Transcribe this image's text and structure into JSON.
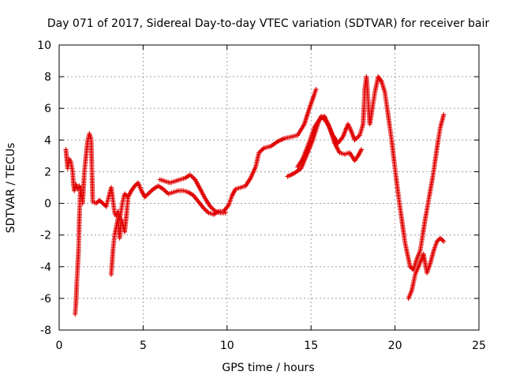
{
  "chart_data": {
    "type": "scatter",
    "title": "Day 071 of 2017, Sidereal Day-to-day VTEC variation (SDTVAR) for receiver bair",
    "xlabel": "GPS time / hours",
    "ylabel": "SDTVAR / TECUs",
    "xlim": [
      0,
      25
    ],
    "ylim": [
      -8,
      10
    ],
    "xticks": [
      "0",
      "5",
      "10",
      "15",
      "20",
      "25"
    ],
    "yticks": [
      "-8",
      "-6",
      "-4",
      "-2",
      "0",
      "2",
      "4",
      "6",
      "8",
      "10"
    ],
    "grid": true,
    "legend": "none",
    "marker": "plus",
    "color": "#e00000",
    "series": [
      {
        "values": [
          [
            0.4,
            3.4
          ],
          [
            0.5,
            2.2
          ],
          [
            0.6,
            2.8
          ],
          [
            0.7,
            2.6
          ],
          [
            0.8,
            2.0
          ],
          [
            0.85,
            1.2
          ],
          [
            0.9,
            0.8
          ],
          [
            1.0,
            1.2
          ],
          [
            1.1,
            0.9
          ],
          [
            1.2,
            1.1
          ],
          [
            1.3,
            0.7
          ],
          [
            1.35,
            0.3
          ],
          [
            1.4,
            0.0
          ],
          [
            1.5,
            2.0
          ],
          [
            1.6,
            3.0
          ],
          [
            1.7,
            4.0
          ],
          [
            1.8,
            4.4
          ],
          [
            1.9,
            4.1
          ],
          [
            2.0,
            0.1
          ],
          [
            2.2,
            0.0
          ],
          [
            2.4,
            0.2
          ],
          [
            2.6,
            0.0
          ],
          [
            2.8,
            -0.2
          ],
          [
            3.0,
            0.6
          ],
          [
            3.1,
            1.0
          ],
          [
            3.2,
            0.2
          ],
          [
            3.3,
            -0.6
          ],
          [
            3.4,
            -0.8
          ],
          [
            3.5,
            -0.5
          ],
          [
            3.6,
            -1.0
          ],
          [
            3.8,
            0.2
          ],
          [
            3.9,
            0.6
          ],
          [
            4.1,
            0.4
          ],
          [
            4.3,
            0.8
          ],
          [
            4.5,
            1.1
          ],
          [
            4.7,
            1.3
          ],
          [
            4.9,
            0.8
          ],
          [
            5.1,
            0.4
          ],
          [
            5.3,
            0.6
          ],
          [
            5.6,
            0.9
          ],
          [
            5.9,
            1.1
          ],
          [
            6.2,
            0.9
          ],
          [
            6.5,
            0.6
          ],
          [
            6.8,
            0.7
          ],
          [
            7.1,
            0.8
          ],
          [
            7.4,
            0.8
          ],
          [
            7.7,
            0.7
          ],
          [
            8.0,
            0.5
          ],
          [
            8.3,
            0.1
          ],
          [
            8.6,
            -0.3
          ],
          [
            8.9,
            -0.6
          ],
          [
            9.2,
            -0.7
          ],
          [
            9.5,
            -0.5
          ],
          [
            9.8,
            -0.5
          ],
          [
            10.1,
            -0.1
          ],
          [
            10.3,
            0.5
          ],
          [
            10.5,
            0.9
          ],
          [
            10.8,
            1.0
          ],
          [
            11.1,
            1.1
          ],
          [
            11.4,
            1.6
          ],
          [
            11.7,
            2.3
          ],
          [
            11.9,
            3.2
          ],
          [
            12.2,
            3.5
          ],
          [
            12.6,
            3.6
          ],
          [
            13.0,
            3.9
          ],
          [
            13.4,
            4.1
          ],
          [
            13.8,
            4.2
          ],
          [
            14.2,
            4.3
          ],
          [
            14.6,
            5.0
          ],
          [
            14.9,
            6.0
          ],
          [
            15.2,
            6.9
          ],
          [
            15.3,
            7.2
          ]
        ]
      },
      {
        "values": [
          [
            0.95,
            -7.0
          ],
          [
            1.0,
            -6.3
          ],
          [
            1.05,
            -5.0
          ],
          [
            1.1,
            -4.0
          ],
          [
            1.15,
            -3.0
          ],
          [
            1.2,
            -1.0
          ],
          [
            1.25,
            0.5
          ],
          [
            1.3,
            1.0
          ],
          [
            3.1,
            -4.5
          ],
          [
            3.2,
            -3.0
          ],
          [
            3.3,
            -2.0
          ],
          [
            3.4,
            -1.5
          ],
          [
            3.5,
            -1.0
          ],
          [
            3.6,
            -2.2
          ],
          [
            3.7,
            -1.0
          ],
          [
            3.9,
            -1.8
          ],
          [
            4.0,
            -0.8
          ],
          [
            4.1,
            0.3
          ],
          [
            6.0,
            1.5
          ],
          [
            6.3,
            1.4
          ],
          [
            6.6,
            1.3
          ],
          [
            6.9,
            1.4
          ],
          [
            7.2,
            1.5
          ],
          [
            7.5,
            1.6
          ],
          [
            7.8,
            1.8
          ],
          [
            8.1,
            1.5
          ],
          [
            8.4,
            0.9
          ],
          [
            8.7,
            0.3
          ],
          [
            9.0,
            -0.2
          ],
          [
            9.3,
            -0.5
          ],
          [
            9.6,
            -0.6
          ],
          [
            9.9,
            -0.6
          ],
          [
            13.6,
            1.7
          ],
          [
            14.0,
            1.9
          ],
          [
            14.4,
            2.2
          ],
          [
            14.8,
            3.2
          ],
          [
            15.1,
            4.0
          ],
          [
            15.4,
            5.0
          ],
          [
            15.6,
            5.5
          ],
          [
            15.8,
            5.3
          ],
          [
            16.0,
            5.0
          ],
          [
            16.3,
            4.3
          ],
          [
            16.6,
            3.8
          ],
          [
            16.9,
            4.2
          ],
          [
            17.2,
            5.0
          ],
          [
            17.3,
            4.8
          ],
          [
            17.6,
            4.0
          ],
          [
            17.9,
            4.3
          ],
          [
            18.1,
            5.0
          ],
          [
            18.2,
            7.2
          ],
          [
            18.3,
            8.0
          ],
          [
            18.5,
            5.0
          ],
          [
            18.8,
            7.0
          ],
          [
            19.0,
            8.0
          ],
          [
            19.2,
            7.7
          ],
          [
            19.4,
            7.0
          ],
          [
            19.6,
            5.5
          ],
          [
            19.8,
            4.0
          ],
          [
            20.0,
            2.2
          ],
          [
            20.2,
            0.5
          ],
          [
            20.4,
            -1.0
          ],
          [
            20.6,
            -2.5
          ],
          [
            20.8,
            -3.5
          ],
          [
            20.9,
            -4.0
          ],
          [
            21.1,
            -4.2
          ],
          [
            21.3,
            -3.5
          ],
          [
            21.5,
            -3.0
          ],
          [
            21.8,
            -1.0
          ],
          [
            22.1,
            0.8
          ],
          [
            22.3,
            2.0
          ],
          [
            22.5,
            3.5
          ],
          [
            22.7,
            4.8
          ],
          [
            22.9,
            5.6
          ]
        ]
      },
      {
        "values": [
          [
            14.2,
            2.3
          ],
          [
            14.5,
            2.8
          ],
          [
            14.8,
            3.6
          ],
          [
            15.0,
            4.2
          ],
          [
            15.2,
            4.8
          ],
          [
            15.5,
            5.3
          ],
          [
            15.8,
            5.5
          ],
          [
            16.1,
            4.8
          ],
          [
            16.4,
            3.8
          ],
          [
            16.7,
            3.2
          ],
          [
            17.0,
            3.1
          ],
          [
            17.3,
            3.2
          ],
          [
            17.6,
            2.7
          ],
          [
            17.8,
            3.0
          ],
          [
            18.0,
            3.4
          ],
          [
            20.8,
            -6.0
          ],
          [
            21.0,
            -5.5
          ],
          [
            21.2,
            -4.5
          ],
          [
            21.4,
            -4.0
          ],
          [
            21.7,
            -3.2
          ],
          [
            21.9,
            -4.4
          ],
          [
            22.1,
            -3.8
          ],
          [
            22.3,
            -3.0
          ],
          [
            22.5,
            -2.4
          ],
          [
            22.7,
            -2.2
          ],
          [
            22.9,
            -2.4
          ]
        ]
      }
    ]
  }
}
